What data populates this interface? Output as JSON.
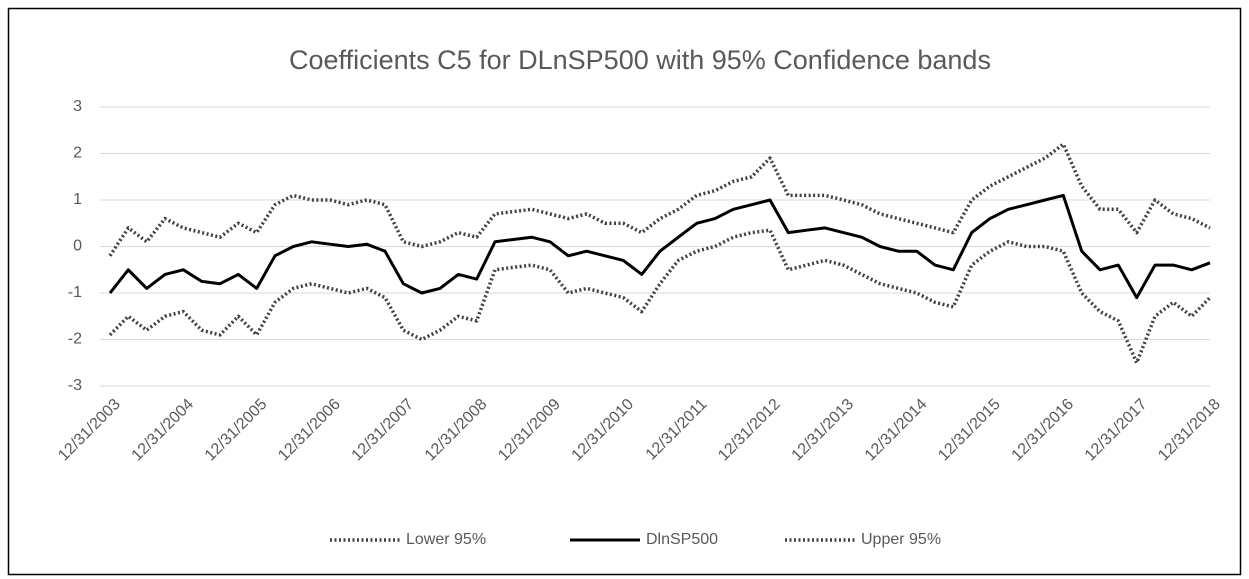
{
  "chart_data": {
    "type": "line",
    "title": "Coefficients C5 for DLnSP500 with 95% Confidence bands",
    "categories": [
      "12/31/2003",
      null,
      null,
      null,
      "12/31/2004",
      null,
      null,
      null,
      "12/31/2005",
      null,
      null,
      null,
      "12/31/2006",
      null,
      null,
      null,
      "12/31/2007",
      null,
      null,
      null,
      "12/31/2008",
      null,
      null,
      null,
      "12/31/2009",
      null,
      null,
      null,
      "12/31/2010",
      null,
      null,
      null,
      "12/31/2011",
      null,
      null,
      null,
      "12/31/2012",
      null,
      null,
      null,
      "12/31/2013",
      null,
      null,
      null,
      "12/31/2014",
      null,
      null,
      null,
      "12/31/2015",
      null,
      null,
      null,
      "12/31/2016",
      null,
      null,
      null,
      "12/31/2017",
      null,
      null,
      null,
      "12/31/2018"
    ],
    "series": [
      {
        "name": "Lower 95%",
        "color": "#404040",
        "dash": "dotted",
        "values": [
          -1.9,
          -1.5,
          -1.8,
          -1.5,
          -1.4,
          -1.8,
          -1.9,
          -1.5,
          -1.9,
          -1.2,
          -0.9,
          -0.8,
          -0.9,
          -1.0,
          -0.9,
          -1.1,
          -1.8,
          -2.0,
          -1.8,
          -1.5,
          -1.6,
          -0.5,
          -0.45,
          -0.4,
          -0.5,
          -1.0,
          -0.9,
          -1.0,
          -1.1,
          -1.4,
          -0.8,
          -0.3,
          -0.1,
          0.0,
          0.2,
          0.3,
          0.35,
          -0.5,
          -0.4,
          -0.3,
          -0.4,
          -0.6,
          -0.8,
          -0.9,
          -1.0,
          -1.2,
          -1.3,
          -0.4,
          -0.1,
          0.1,
          0.0,
          0.0,
          -0.1,
          -1.0,
          -1.4,
          -1.6,
          -2.5,
          -1.5,
          -1.2,
          -1.5,
          -1.1
        ]
      },
      {
        "name": "DlnSP500",
        "color": "#000000",
        "dash": "solid",
        "values": [
          -1.0,
          -0.5,
          -0.9,
          -0.6,
          -0.5,
          -0.75,
          -0.8,
          -0.6,
          -0.9,
          -0.2,
          0.0,
          0.1,
          0.05,
          0.0,
          0.05,
          -0.1,
          -0.8,
          -1.0,
          -0.9,
          -0.6,
          -0.7,
          0.1,
          0.15,
          0.2,
          0.1,
          -0.2,
          -0.1,
          -0.2,
          -0.3,
          -0.6,
          -0.1,
          0.2,
          0.5,
          0.6,
          0.8,
          0.9,
          1.0,
          0.3,
          0.35,
          0.4,
          0.3,
          0.2,
          0.0,
          -0.1,
          -0.1,
          -0.4,
          -0.5,
          0.3,
          0.6,
          0.8,
          0.9,
          1.0,
          1.1,
          -0.1,
          -0.5,
          -0.4,
          -1.1,
          -0.4,
          -0.4,
          -0.5,
          -0.35
        ]
      },
      {
        "name": "Upper 95%",
        "color": "#404040",
        "dash": "dotted",
        "values": [
          -0.2,
          0.4,
          0.1,
          0.6,
          0.4,
          0.3,
          0.2,
          0.5,
          0.3,
          0.9,
          1.1,
          1.0,
          1.0,
          0.9,
          1.0,
          0.9,
          0.1,
          0.0,
          0.1,
          0.3,
          0.2,
          0.7,
          0.75,
          0.8,
          0.7,
          0.6,
          0.7,
          0.5,
          0.5,
          0.3,
          0.6,
          0.8,
          1.1,
          1.2,
          1.4,
          1.5,
          1.9,
          1.1,
          1.1,
          1.1,
          1.0,
          0.9,
          0.7,
          0.6,
          0.5,
          0.4,
          0.3,
          1.0,
          1.3,
          1.5,
          1.7,
          1.9,
          2.2,
          1.3,
          0.8,
          0.8,
          0.3,
          1.0,
          0.7,
          0.6,
          0.4
        ]
      }
    ],
    "ylim": [
      -3,
      3
    ],
    "yticks": [
      -3,
      -2,
      -1,
      0,
      1,
      2,
      3
    ],
    "grid": true,
    "legend": "bottom"
  }
}
